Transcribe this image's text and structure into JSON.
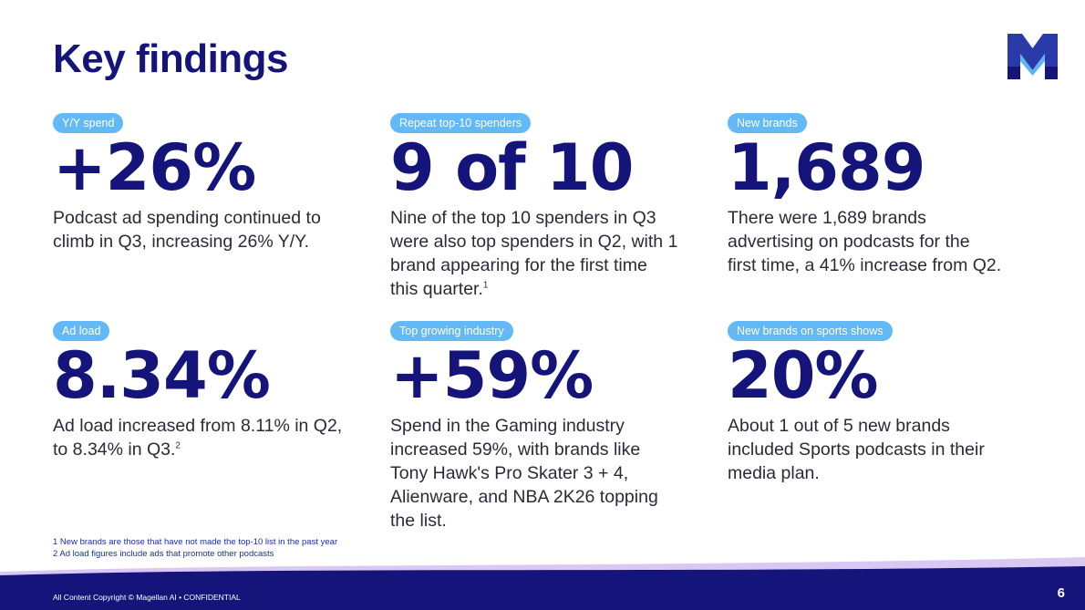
{
  "title": "Key findings",
  "accent_color": "#62b9f5",
  "brand_color": "#14147a",
  "findings": [
    {
      "label": "Y/Y spend",
      "value": "+26%",
      "desc_lines": [
        "Podcast ad spending continued to",
        "climb in Q3, increasing 26% Y/Y."
      ],
      "footnote_ref": ""
    },
    {
      "label": "Repeat top-10 spenders",
      "value": "9 of 10",
      "desc_lines": [
        "Nine of the top 10 spenders in Q3",
        "were also top spenders in Q2, with 1",
        "brand appearing for the first time",
        "this quarter."
      ],
      "footnote_ref": "1"
    },
    {
      "label": "New brands",
      "value": "1,689",
      "desc_lines": [
        "There were 1,689 brands",
        "advertising on podcasts for the",
        "first time, a 41% increase from Q2."
      ],
      "footnote_ref": ""
    },
    {
      "label": "Ad load",
      "value": "8.34%",
      "desc_lines": [
        "Ad load increased from 8.11% in Q2,",
        "to 8.34% in Q3."
      ],
      "footnote_ref": "2"
    },
    {
      "label": "Top growing industry",
      "value": "+59%",
      "desc_lines": [
        "Spend in the Gaming industry",
        "increased 59%, with brands like",
        "Tony Hawk's Pro Skater 3 + 4,",
        "Alienware, and NBA 2K26 topping",
        "the list."
      ],
      "footnote_ref": ""
    },
    {
      "label": "New brands on sports shows",
      "value": "20%",
      "desc_lines": [
        "About 1 out of 5 new brands",
        "included Sports podcasts in their",
        "media plan."
      ],
      "footnote_ref": ""
    }
  ],
  "footnotes": [
    "1 New brands are those that have not made the top-10 list in the past year",
    "2 Ad load figures include ads that promote other podcasts"
  ],
  "footer": {
    "copyright": "All Content Copyright © Magellan AI • CONFIDENTIAL",
    "page_number": "6"
  },
  "logo_icon": "magellan-m-logo-icon"
}
